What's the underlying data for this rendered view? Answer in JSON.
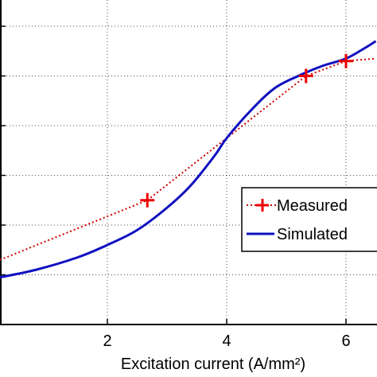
{
  "chart_data": {
    "type": "line",
    "title": "",
    "xlabel": "Excitation current (A/mm²)",
    "ylabel": "",
    "xlim": [
      0.2,
      6.5
    ],
    "x_ticks": [
      "2",
      "4",
      "6"
    ],
    "x_tick_values": [
      2,
      4,
      6
    ],
    "y_grid_values": [
      1,
      2,
      3,
      4,
      5,
      6
    ],
    "ylim": [
      0,
      6.25
    ],
    "grid": true,
    "legend_position": "lower-right",
    "series": [
      {
        "name": "Measured",
        "style": "dotted-with-plus-markers",
        "color": "#cc0000",
        "marker_color": "#ee0000",
        "x": [
          0.2,
          2.67,
          5.33,
          6.0,
          6.5
        ],
        "y": [
          1.3,
          2.5,
          5.0,
          5.3,
          5.35
        ],
        "marker_x": [
          2.67,
          5.33,
          6.0
        ],
        "marker_y": [
          2.5,
          5.0,
          5.3
        ]
      },
      {
        "name": "Simulated",
        "style": "solid",
        "color": "#1010c0",
        "x": [
          0.2,
          0.8,
          1.5,
          2.0,
          2.5,
          3.0,
          3.4,
          3.8,
          4.0,
          4.4,
          4.8,
          5.2,
          5.6,
          6.0,
          6.3,
          6.5
        ],
        "y": [
          0.95,
          1.1,
          1.35,
          1.6,
          1.9,
          2.35,
          2.8,
          3.4,
          3.75,
          4.3,
          4.75,
          5.0,
          5.2,
          5.35,
          5.55,
          5.7
        ]
      }
    ]
  }
}
